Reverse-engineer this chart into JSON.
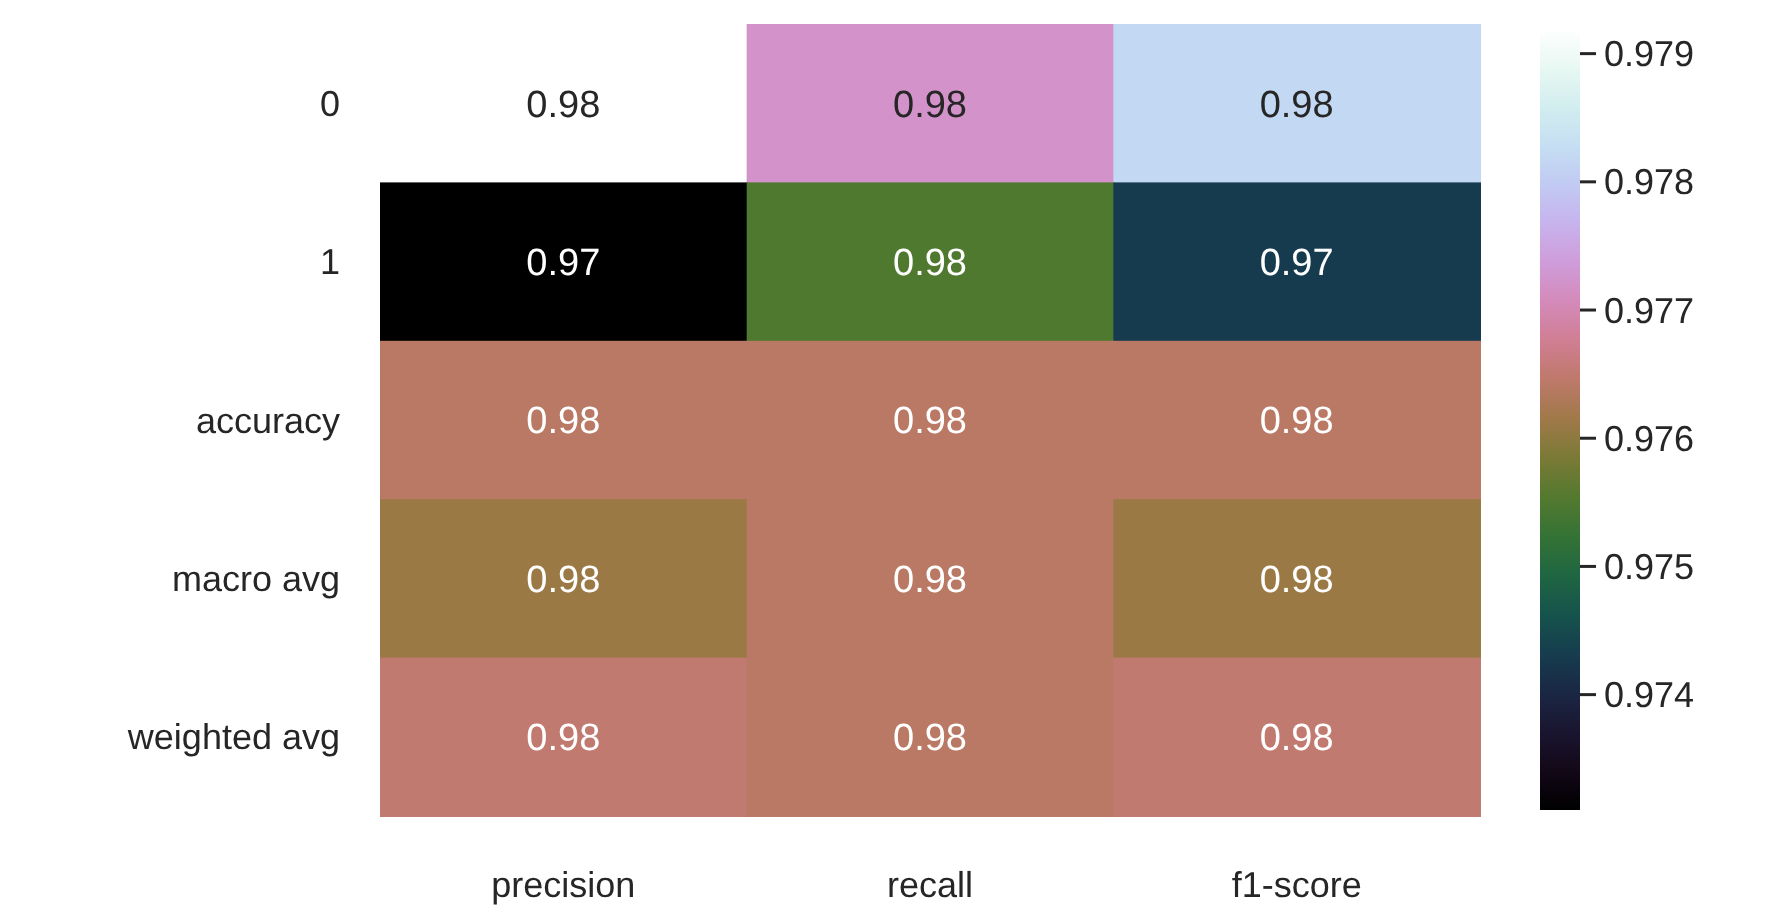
{
  "chart_data": {
    "type": "heatmap",
    "categories": [
      "precision",
      "recall",
      "f1-score"
    ],
    "y_categories": [
      "0",
      "1",
      "accuracy",
      "macro avg",
      "weighted avg"
    ],
    "cells": [
      [
        0.9792,
        0.9772,
        0.9782
      ],
      [
        0.9731,
        0.9755,
        0.9743
      ],
      [
        0.9764,
        0.9764,
        0.9764
      ],
      [
        0.9761,
        0.9764,
        0.9761
      ],
      [
        0.9765,
        0.9764,
        0.9765
      ]
    ],
    "cell_labels": [
      [
        "0.98",
        "0.98",
        "0.98"
      ],
      [
        "0.97",
        "0.98",
        "0.97"
      ],
      [
        "0.98",
        "0.98",
        "0.98"
      ],
      [
        "0.98",
        "0.98",
        "0.98"
      ],
      [
        "0.98",
        "0.98",
        "0.98"
      ]
    ],
    "clim": [
      0.9731,
      0.9792
    ],
    "cticks": [
      0.974,
      0.975,
      0.976,
      0.977,
      0.978,
      0.979
    ]
  }
}
